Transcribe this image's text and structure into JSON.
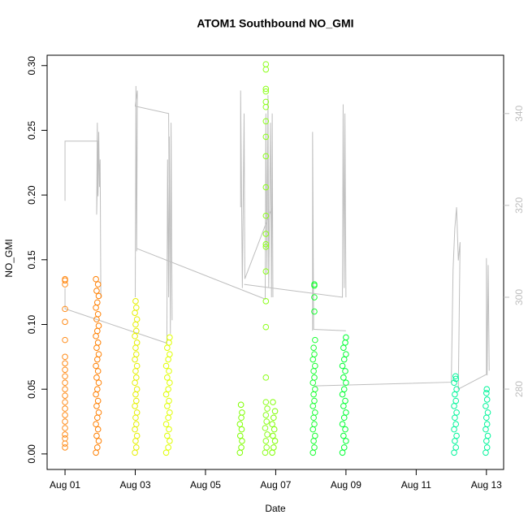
{
  "chart_data": {
    "type": "scatter",
    "title": "ATOM1 Southbound NO_GMI",
    "xlabel": "Date",
    "ylabel": "NO_GMI",
    "xlim": [
      0.49,
      13.49
    ],
    "xticks": [
      {
        "value": 1,
        "label": "Aug 01"
      },
      {
        "value": 3,
        "label": "Aug 03"
      },
      {
        "value": 5,
        "label": "Aug 05"
      },
      {
        "value": 7,
        "label": "Aug 07"
      },
      {
        "value": 9,
        "label": "Aug 09"
      },
      {
        "value": 11,
        "label": "Aug 11"
      },
      {
        "value": 13,
        "label": "Aug 13"
      }
    ],
    "ylim": [
      -0.012,
      0.308
    ],
    "yticks": [
      {
        "value": 0,
        "label": "0.00"
      },
      {
        "value": 0.05,
        "label": "0.05"
      },
      {
        "value": 0.1,
        "label": "0.10"
      },
      {
        "value": 0.15,
        "label": "0.15"
      },
      {
        "value": 0.2,
        "label": "0.20"
      },
      {
        "value": 0.25,
        "label": "0.25"
      },
      {
        "value": 0.3,
        "label": "0.30"
      }
    ],
    "y2lim": [
      262.5,
      352.7
    ],
    "y2ticks": [
      280,
      300,
      320,
      340
    ],
    "y2color": "#BEBEBE",
    "series": [
      {
        "type": "scatter",
        "color": "#FF8C1A",
        "x": [
          1,
          1,
          1,
          1,
          1,
          1,
          1,
          1,
          1,
          1,
          1,
          1,
          1,
          1,
          1,
          1,
          1,
          1,
          1,
          1,
          1,
          1
        ],
        "values": [
          0.005,
          0.008,
          0.012,
          0.015,
          0.02,
          0.025,
          0.03,
          0.035,
          0.04,
          0.045,
          0.05,
          0.055,
          0.06,
          0.065,
          0.07,
          0.075,
          0.088,
          0.102,
          0.112,
          0.131,
          0.134,
          0.135
        ]
      },
      {
        "type": "scatter",
        "color": "#FF7F00",
        "x": [
          1.88,
          1.92,
          1.96,
          1.9,
          1.94,
          1.88,
          1.92,
          1.96,
          1.9,
          1.94,
          1.88,
          1.92,
          1.96,
          1.9,
          1.94,
          1.88,
          1.92,
          1.96,
          1.9,
          1.94,
          1.88,
          1.92,
          1.96,
          1.9,
          1.94,
          1.88,
          1.92,
          1.96,
          1.9,
          1.94,
          1.88
        ],
        "values": [
          0.001,
          0.005,
          0.01,
          0.014,
          0.019,
          0.023,
          0.028,
          0.032,
          0.037,
          0.041,
          0.046,
          0.05,
          0.055,
          0.059,
          0.064,
          0.068,
          0.073,
          0.077,
          0.082,
          0.086,
          0.091,
          0.095,
          0.099,
          0.104,
          0.108,
          0.113,
          0.117,
          0.122,
          0.126,
          0.131,
          0.135
        ]
      },
      {
        "type": "scatter",
        "color": "#E6F000",
        "x": [
          2.99,
          3.03,
          3.01,
          3.05,
          2.99,
          3.03,
          3.01,
          3.05,
          2.99,
          3.03,
          3.01,
          3.05,
          2.99,
          3.03,
          3.01,
          3.05,
          2.99,
          3.03,
          3.01,
          3.05,
          2.99,
          3.03,
          3.01,
          3.05,
          2.99,
          3.03,
          3.01
        ],
        "values": [
          0.001,
          0.005,
          0.01,
          0.014,
          0.019,
          0.023,
          0.028,
          0.032,
          0.037,
          0.041,
          0.046,
          0.05,
          0.055,
          0.059,
          0.064,
          0.068,
          0.073,
          0.077,
          0.082,
          0.086,
          0.091,
          0.095,
          0.1,
          0.104,
          0.109,
          0.113,
          0.118
        ]
      },
      {
        "type": "scatter",
        "color": "#E0FF00",
        "x": [
          3.88,
          3.94,
          3.98,
          3.91,
          3.96,
          3.88,
          3.94,
          3.98,
          3.91,
          3.96,
          3.88,
          3.94,
          3.98,
          3.91,
          3.96,
          3.88,
          3.94,
          3.98,
          3.91,
          3.96,
          3.98
        ],
        "values": [
          0.001,
          0.005,
          0.01,
          0.014,
          0.019,
          0.023,
          0.028,
          0.032,
          0.037,
          0.041,
          0.046,
          0.05,
          0.055,
          0.059,
          0.064,
          0.068,
          0.073,
          0.077,
          0.082,
          0.086,
          0.09
        ]
      },
      {
        "type": "scatter",
        "color": "#7FFF00",
        "x": [
          5.98,
          6.02,
          6.04,
          5.99,
          6.03,
          5.98,
          6.02,
          6.04,
          6.01
        ],
        "values": [
          0.001,
          0.005,
          0.01,
          0.014,
          0.019,
          0.023,
          0.028,
          0.032,
          0.038
        ]
      },
      {
        "type": "scatter",
        "color": "#8CFF1A",
        "x": [
          6.7,
          6.74,
          6.72,
          6.76,
          6.7,
          6.74,
          6.72,
          6.76,
          6.72,
          6.72,
          6.72,
          6.72,
          6.72,
          6.72,
          6.72,
          6.72,
          6.72,
          6.72,
          6.72,
          6.72,
          6.72,
          6.72,
          6.72,
          6.72,
          6.72,
          6.72,
          6.72
        ],
        "values": [
          0.001,
          0.005,
          0.01,
          0.015,
          0.02,
          0.025,
          0.03,
          0.035,
          0.04,
          0.059,
          0.098,
          0.118,
          0.141,
          0.16,
          0.162,
          0.17,
          0.184,
          0.206,
          0.23,
          0.245,
          0.257,
          0.268,
          0.272,
          0.28,
          0.282,
          0.297,
          0.301
        ]
      },
      {
        "type": "scatter",
        "color": "#7FFF00",
        "x": [
          6.9,
          6.94,
          6.98,
          6.92,
          6.96,
          6.9,
          6.94,
          6.98,
          6.92
        ],
        "values": [
          0.001,
          0.005,
          0.01,
          0.014,
          0.019,
          0.023,
          0.028,
          0.033,
          0.04
        ]
      },
      {
        "type": "scatter",
        "color": "#19FF33",
        "x": [
          8.06,
          8.1,
          8.08,
          8.12,
          8.06,
          8.1,
          8.08,
          8.12,
          8.06,
          8.1,
          8.08,
          8.12,
          8.06,
          8.1,
          8.08,
          8.12,
          8.06,
          8.1,
          8.08,
          8.12,
          8.1,
          8.1,
          8.1,
          8.1
        ],
        "values": [
          0.001,
          0.005,
          0.01,
          0.014,
          0.019,
          0.023,
          0.028,
          0.032,
          0.037,
          0.041,
          0.046,
          0.05,
          0.055,
          0.059,
          0.064,
          0.068,
          0.073,
          0.077,
          0.082,
          0.088,
          0.11,
          0.121,
          0.13,
          0.131
        ]
      },
      {
        "type": "scatter",
        "color": "#00FF33",
        "x": [
          8.9,
          8.95,
          9,
          8.93,
          8.98,
          8.9,
          8.95,
          9,
          8.93,
          8.98,
          8.9,
          8.95,
          9,
          8.93,
          8.98,
          8.9,
          8.95,
          9,
          8.93,
          8.98,
          9
        ],
        "values": [
          0.001,
          0.005,
          0.01,
          0.014,
          0.019,
          0.023,
          0.028,
          0.032,
          0.037,
          0.041,
          0.046,
          0.05,
          0.055,
          0.059,
          0.064,
          0.068,
          0.073,
          0.077,
          0.082,
          0.086,
          0.09
        ]
      },
      {
        "type": "scatter",
        "color": "#00F59A",
        "x": [
          12.08,
          12.13,
          12.1,
          12.15,
          12.08,
          12.13,
          12.1,
          12.15,
          12.08,
          12.13,
          12.1,
          12.15,
          12.08,
          12.13,
          12.12
        ],
        "values": [
          0.001,
          0.005,
          0.01,
          0.014,
          0.019,
          0.023,
          0.028,
          0.032,
          0.037,
          0.041,
          0.046,
          0.05,
          0.055,
          0.058,
          0.06
        ]
      },
      {
        "type": "scatter",
        "color": "#00F59A",
        "x": [
          12.98,
          13.02,
          13,
          13.04,
          12.98,
          13.02,
          13,
          13.04,
          12.98,
          13.02,
          13,
          13.01
        ],
        "values": [
          0.001,
          0.005,
          0.01,
          0.014,
          0.019,
          0.023,
          0.028,
          0.032,
          0.037,
          0.042,
          0.047,
          0.05
        ]
      },
      {
        "type": "line",
        "axis": "y2",
        "color": "#BEBEBE",
        "x": [
          1,
          1,
          1.95,
          1.9,
          1.92,
          1.94,
          1.96,
          1.98,
          2,
          2.02,
          null,
          1,
          1,
          3.9,
          3.92,
          3.95,
          3.97,
          4,
          4.02,
          4.05,
          null,
          3,
          3.02,
          3.04,
          3.06,
          3,
          3.95,
          3.97,
          null,
          3.05,
          6.7,
          6.72,
          6.75,
          6.78,
          6.8,
          6.85,
          6.88,
          6.9,
          6.92,
          null,
          6,
          6,
          6.05,
          6.1,
          6.12,
          6.9,
          null,
          6.1,
          8.9,
          8.92,
          8.95,
          8.97,
          9,
          null,
          8.05,
          8.05,
          8.08,
          9,
          null,
          8.1,
          12,
          12.05,
          12.1,
          12.15,
          12.2,
          12.25,
          12.2,
          13,
          13,
          13.02,
          13.05,
          13.08
        ],
        "values": [
          321,
          334,
          334,
          318,
          338,
          322,
          336,
          324,
          330,
          300,
          null,
          302,
          297.5,
          290,
          330,
          300,
          335,
          292,
          338,
          295,
          null,
          300,
          346,
          310,
          345,
          341.6,
          340,
          318,
          null,
          310.6,
          299.6,
          340,
          305,
          344,
          302,
          338,
          300,
          340,
          300,
          null,
          319.6,
          345,
          302,
          340,
          304,
          319.6,
          null,
          302.8,
          300,
          342,
          302,
          340,
          300,
          null,
          292.7,
          336,
          293,
          292.7,
          null,
          280.7,
          281.5,
          306,
          315,
          319.6,
          308,
          312,
          280,
          283.2,
          308.5,
          283,
          307,
          284
        ]
      }
    ]
  }
}
